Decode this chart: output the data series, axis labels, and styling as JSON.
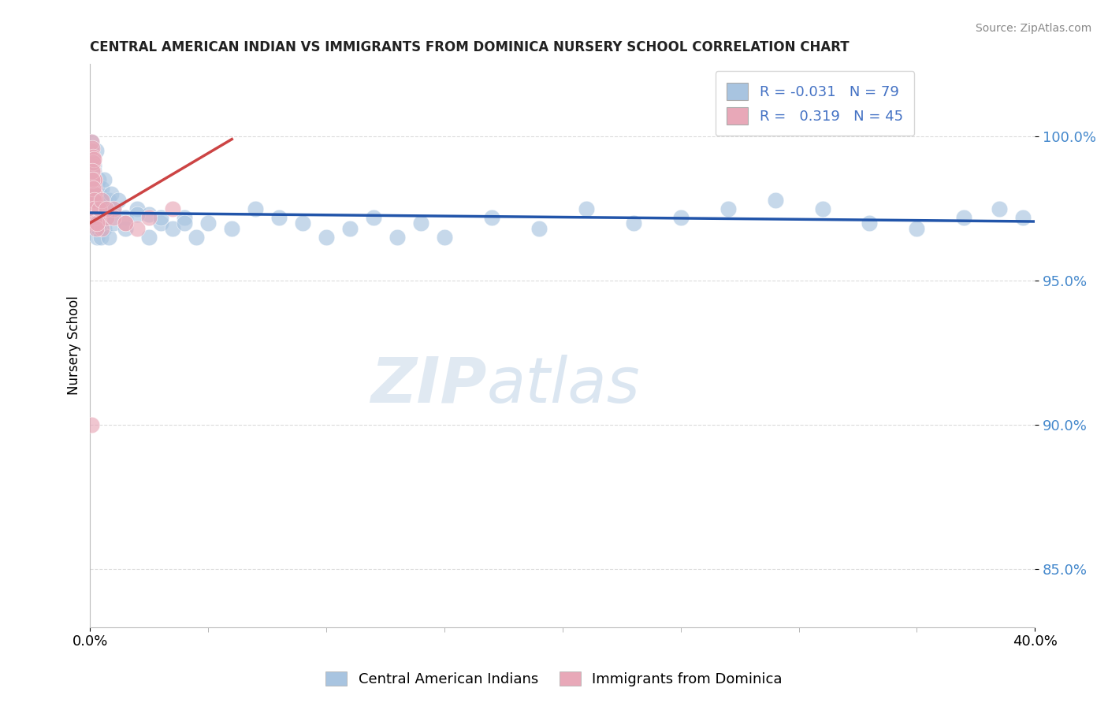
{
  "title": "CENTRAL AMERICAN INDIAN VS IMMIGRANTS FROM DOMINICA NURSERY SCHOOL CORRELATION CHART",
  "source": "Source: ZipAtlas.com",
  "ylabel": "Nursery School",
  "xlim": [
    0.0,
    40.0
  ],
  "ylim": [
    83.0,
    102.5
  ],
  "yticks": [
    85.0,
    90.0,
    95.0,
    100.0
  ],
  "ytick_labels": [
    "85.0%",
    "90.0%",
    "95.0%",
    "100.0%"
  ],
  "xtick_labels": [
    "0.0%",
    "40.0%"
  ],
  "r_blue": -0.031,
  "n_blue": 79,
  "r_pink": 0.319,
  "n_pink": 45,
  "blue_color": "#a8c4e0",
  "pink_color": "#e8a8b8",
  "blue_line_color": "#2255aa",
  "pink_line_color": "#cc4444",
  "legend_label_blue": "Central American Indians",
  "legend_label_pink": "Immigrants from Dominica",
  "watermark_zip": "ZIP",
  "watermark_atlas": "atlas",
  "blue_x": [
    0.05,
    0.08,
    0.1,
    0.12,
    0.14,
    0.15,
    0.16,
    0.17,
    0.18,
    0.2,
    0.22,
    0.25,
    0.28,
    0.3,
    0.35,
    0.4,
    0.45,
    0.5,
    0.55,
    0.6,
    0.7,
    0.8,
    0.9,
    1.0,
    1.2,
    1.5,
    2.0,
    2.5,
    3.0,
    3.5,
    4.0,
    4.5,
    5.0,
    6.0,
    7.0,
    8.0,
    9.0,
    10.0,
    11.0,
    12.0,
    13.0,
    14.0,
    15.0,
    17.0,
    19.0,
    21.0,
    23.0,
    25.0,
    27.0,
    29.0,
    31.0,
    33.0,
    35.0,
    37.0,
    38.5,
    39.5,
    0.1,
    0.12,
    0.14,
    0.16,
    0.18,
    0.2,
    0.22,
    0.25,
    0.28,
    0.3,
    0.35,
    0.4,
    0.45,
    0.5,
    0.6,
    0.7,
    0.8,
    1.0,
    1.5,
    2.0,
    2.5,
    3.0,
    4.0
  ],
  "blue_y": [
    99.8,
    99.5,
    99.2,
    98.8,
    99.0,
    98.5,
    98.8,
    98.2,
    98.5,
    97.8,
    98.0,
    99.5,
    98.3,
    97.8,
    98.5,
    98.0,
    97.5,
    98.2,
    97.8,
    98.5,
    97.5,
    97.8,
    98.0,
    97.5,
    97.8,
    97.2,
    97.5,
    97.3,
    97.0,
    96.8,
    97.2,
    96.5,
    97.0,
    96.8,
    97.5,
    97.2,
    97.0,
    96.5,
    96.8,
    97.2,
    96.5,
    97.0,
    96.5,
    97.2,
    96.8,
    97.5,
    97.0,
    97.2,
    97.5,
    97.8,
    97.5,
    97.0,
    96.8,
    97.2,
    97.5,
    97.2,
    97.3,
    97.5,
    97.2,
    97.5,
    97.2,
    97.0,
    96.8,
    97.0,
    96.5,
    97.2,
    96.8,
    97.0,
    96.5,
    97.2,
    96.8,
    97.2,
    96.5,
    97.0,
    96.8,
    97.3,
    96.5,
    97.2,
    97.0
  ],
  "pink_x": [
    0.04,
    0.06,
    0.08,
    0.1,
    0.1,
    0.12,
    0.12,
    0.13,
    0.14,
    0.15,
    0.15,
    0.16,
    0.17,
    0.18,
    0.18,
    0.2,
    0.2,
    0.22,
    0.25,
    0.28,
    0.3,
    0.35,
    0.4,
    0.5,
    0.7,
    1.0,
    1.5,
    2.0,
    2.5,
    3.5,
    0.08,
    0.1,
    0.12,
    0.14,
    0.16,
    0.18,
    0.2,
    0.25,
    0.3,
    0.4,
    0.5,
    0.7,
    1.0,
    1.5,
    0.06
  ],
  "pink_y": [
    99.5,
    99.8,
    99.2,
    99.6,
    99.0,
    99.3,
    98.8,
    99.1,
    98.5,
    99.2,
    98.0,
    98.5,
    98.2,
    97.8,
    98.5,
    97.5,
    98.0,
    97.8,
    97.5,
    97.2,
    97.0,
    97.5,
    97.2,
    96.8,
    97.2,
    97.5,
    97.0,
    96.8,
    97.2,
    97.5,
    98.8,
    98.5,
    98.2,
    97.8,
    97.5,
    97.2,
    97.0,
    96.8,
    97.0,
    97.5,
    97.8,
    97.5,
    97.2,
    97.0,
    90.0
  ],
  "blue_trend_x": [
    0.0,
    40.0
  ],
  "blue_trend_y": [
    97.35,
    97.05
  ],
  "pink_trend_x": [
    0.0,
    6.0
  ],
  "pink_trend_y": [
    97.0,
    99.9
  ]
}
